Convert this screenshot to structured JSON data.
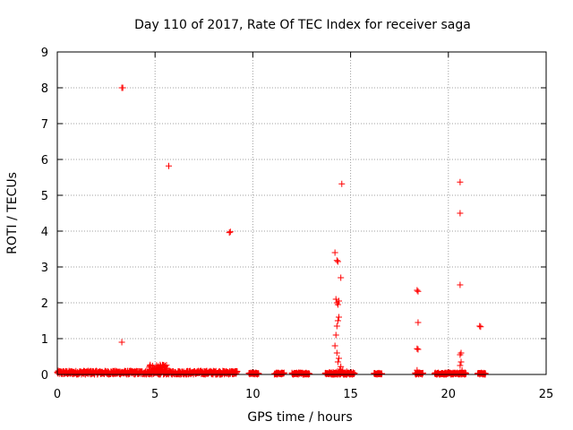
{
  "chart_data": {
    "type": "scatter",
    "title": "Day 110 of 2017, Rate Of TEC Index for receiver saga",
    "xlabel": "GPS time / hours",
    "ylabel": "ROTI / TECUs",
    "xlim": [
      0,
      25
    ],
    "ylim": [
      0,
      9
    ],
    "xticks": [
      "0",
      "5",
      "10",
      "15",
      "20",
      "25"
    ],
    "yticks": [
      "0",
      "1",
      "2",
      "3",
      "4",
      "5",
      "6",
      "7",
      "8",
      "9"
    ],
    "grid": true,
    "marker": "plus",
    "color": "#ff0000",
    "series": [
      {
        "name": "ROTI",
        "points": [
          [
            3.3,
            8.0
          ],
          [
            3.35,
            8.0
          ],
          [
            5.7,
            5.82
          ],
          [
            8.8,
            3.96
          ],
          [
            8.85,
            3.98
          ],
          [
            3.3,
            0.9
          ],
          [
            14.2,
            3.4
          ],
          [
            14.3,
            3.18
          ],
          [
            14.35,
            3.15
          ],
          [
            14.5,
            2.7
          ],
          [
            14.55,
            5.32
          ],
          [
            14.25,
            2.1
          ],
          [
            14.3,
            2.0
          ],
          [
            14.35,
            1.95
          ],
          [
            14.4,
            2.05
          ],
          [
            14.4,
            1.6
          ],
          [
            14.35,
            1.5
          ],
          [
            14.3,
            1.35
          ],
          [
            14.25,
            1.1
          ],
          [
            14.2,
            0.8
          ],
          [
            14.3,
            0.6
          ],
          [
            14.4,
            0.45
          ],
          [
            14.35,
            0.35
          ],
          [
            14.5,
            0.22
          ],
          [
            14.6,
            0.12
          ],
          [
            14.7,
            0.05
          ],
          [
            14.8,
            0.08
          ],
          [
            14.45,
            0.15
          ],
          [
            18.4,
            2.35
          ],
          [
            18.45,
            2.32
          ],
          [
            18.45,
            1.45
          ],
          [
            18.4,
            0.72
          ],
          [
            18.45,
            0.7
          ],
          [
            18.4,
            0.12
          ],
          [
            18.5,
            0.05
          ],
          [
            20.6,
            5.37
          ],
          [
            20.6,
            4.5
          ],
          [
            20.6,
            2.5
          ],
          [
            20.65,
            0.6
          ],
          [
            20.6,
            0.55
          ],
          [
            20.65,
            0.35
          ],
          [
            20.6,
            0.25
          ],
          [
            20.7,
            0.12
          ],
          [
            21.6,
            1.35
          ],
          [
            21.65,
            1.33
          ]
        ],
        "baseline_segments": [
          {
            "x_start": 0.0,
            "x_end": 9.2,
            "y_min": 0.0,
            "y_max": 0.1
          },
          {
            "x_start": 4.7,
            "x_end": 5.6,
            "y_min": 0.0,
            "y_max": 0.27
          },
          {
            "x_start": 9.8,
            "x_end": 10.3,
            "y_min": 0.0,
            "y_max": 0.05
          },
          {
            "x_start": 11.1,
            "x_end": 11.6,
            "y_min": 0.0,
            "y_max": 0.05
          },
          {
            "x_start": 12.0,
            "x_end": 12.9,
            "y_min": 0.0,
            "y_max": 0.05
          },
          {
            "x_start": 13.7,
            "x_end": 15.2,
            "y_min": 0.0,
            "y_max": 0.06
          },
          {
            "x_start": 16.2,
            "x_end": 16.6,
            "y_min": 0.0,
            "y_max": 0.04
          },
          {
            "x_start": 18.3,
            "x_end": 18.7,
            "y_min": 0.0,
            "y_max": 0.05
          },
          {
            "x_start": 19.3,
            "x_end": 20.9,
            "y_min": 0.0,
            "y_max": 0.05
          },
          {
            "x_start": 21.5,
            "x_end": 21.9,
            "y_min": 0.0,
            "y_max": 0.05
          }
        ]
      }
    ]
  }
}
